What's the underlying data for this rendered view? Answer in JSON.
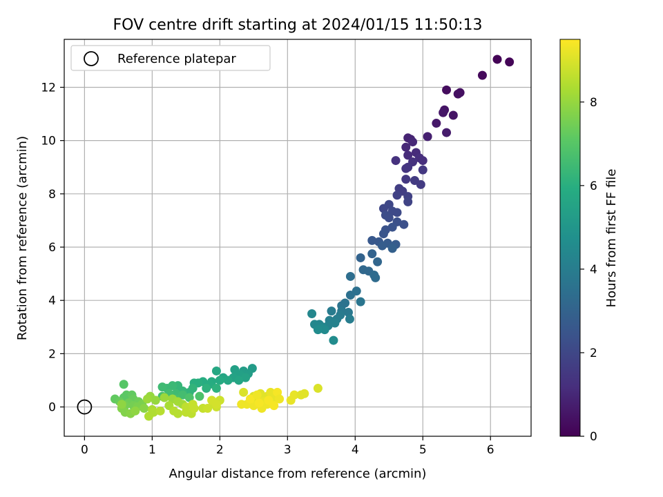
{
  "chart_data": {
    "type": "scatter",
    "title": "FOV centre drift starting at 2024/01/15 11:50:13",
    "xlabel": "Angular distance from reference (arcmin)",
    "ylabel": "Rotation from reference (arcmin)",
    "xlim": [
      -0.3,
      6.6
    ],
    "ylim": [
      -1.1,
      13.8
    ],
    "xticks": [
      "0",
      "1",
      "2",
      "3",
      "4",
      "5",
      "6"
    ],
    "yticks": [
      "0",
      "2",
      "4",
      "6",
      "8",
      "10",
      "12"
    ],
    "grid": true,
    "legend": {
      "position": "top-left",
      "label": "Reference platepar"
    },
    "reference_point": {
      "x": 0,
      "y": 0
    },
    "colorbar": {
      "label": "Hours from first FF file",
      "range": [
        0,
        9.5
      ],
      "ticks": [
        "0",
        "2",
        "4",
        "6",
        "8"
      ],
      "colormap": "viridis"
    },
    "points": [
      [
        6.1,
        13.05,
        0.05
      ],
      [
        6.28,
        12.95,
        0.1
      ],
      [
        5.88,
        12.45,
        0.2
      ],
      [
        5.55,
        11.8,
        0.35
      ],
      [
        5.52,
        11.75,
        0.4
      ],
      [
        5.35,
        11.9,
        0.3
      ],
      [
        5.45,
        10.95,
        0.5
      ],
      [
        5.32,
        11.15,
        0.5
      ],
      [
        5.3,
        11.05,
        0.55
      ],
      [
        5.2,
        10.65,
        0.6
      ],
      [
        5.35,
        10.3,
        0.7
      ],
      [
        5.07,
        10.15,
        0.8
      ],
      [
        4.82,
        10.05,
        0.9
      ],
      [
        4.78,
        10.1,
        0.9
      ],
      [
        4.85,
        9.95,
        1.0
      ],
      [
        4.75,
        9.75,
        1.0
      ],
      [
        4.9,
        9.55,
        1.1
      ],
      [
        4.78,
        9.45,
        1.1
      ],
      [
        4.95,
        9.35,
        1.2
      ],
      [
        5.0,
        9.25,
        1.2
      ],
      [
        4.6,
        9.25,
        1.3
      ],
      [
        4.85,
        9.2,
        1.3
      ],
      [
        4.78,
        9.0,
        1.4
      ],
      [
        4.75,
        8.95,
        1.4
      ],
      [
        5.0,
        8.9,
        1.5
      ],
      [
        4.75,
        8.55,
        1.5
      ],
      [
        4.88,
        8.5,
        1.6
      ],
      [
        4.97,
        8.35,
        1.6
      ],
      [
        4.65,
        8.2,
        1.7
      ],
      [
        4.7,
        8.1,
        1.7
      ],
      [
        4.62,
        7.95,
        1.8
      ],
      [
        4.78,
        7.9,
        1.8
      ],
      [
        4.78,
        7.7,
        1.9
      ],
      [
        4.5,
        7.6,
        2.0
      ],
      [
        4.42,
        7.45,
        2.0
      ],
      [
        4.55,
        7.35,
        2.1
      ],
      [
        4.62,
        7.3,
        2.1
      ],
      [
        4.45,
        7.2,
        2.2
      ],
      [
        4.5,
        7.1,
        2.2
      ],
      [
        4.72,
        6.85,
        2.3
      ],
      [
        4.62,
        6.95,
        2.3
      ],
      [
        4.55,
        6.75,
        2.4
      ],
      [
        4.45,
        6.65,
        2.4
      ],
      [
        4.42,
        6.5,
        2.5
      ],
      [
        4.25,
        6.25,
        2.6
      ],
      [
        4.35,
        6.2,
        2.6
      ],
      [
        4.48,
        6.15,
        2.7
      ],
      [
        4.6,
        6.1,
        2.7
      ],
      [
        4.55,
        6.0,
        2.8
      ],
      [
        4.4,
        6.05,
        2.8
      ],
      [
        4.55,
        5.95,
        2.9
      ],
      [
        4.25,
        5.75,
        3.0
      ],
      [
        4.08,
        5.6,
        3.0
      ],
      [
        4.33,
        5.45,
        3.1
      ],
      [
        4.12,
        5.15,
        3.2
      ],
      [
        4.2,
        5.1,
        3.2
      ],
      [
        4.28,
        4.95,
        3.3
      ],
      [
        4.3,
        4.85,
        3.3
      ],
      [
        3.93,
        4.9,
        3.4
      ],
      [
        4.02,
        4.35,
        3.5
      ],
      [
        3.93,
        4.2,
        3.5
      ],
      [
        3.85,
        3.9,
        3.6
      ],
      [
        3.8,
        3.8,
        3.6
      ],
      [
        4.08,
        3.95,
        3.7
      ],
      [
        3.9,
        3.55,
        3.8
      ],
      [
        3.8,
        3.6,
        3.8
      ],
      [
        3.65,
        3.6,
        3.9
      ],
      [
        3.78,
        3.45,
        3.9
      ],
      [
        3.92,
        3.3,
        4.0
      ],
      [
        3.73,
        3.3,
        4.0
      ],
      [
        3.62,
        3.25,
        4.1
      ],
      [
        3.7,
        3.15,
        4.2
      ],
      [
        3.6,
        3.05,
        4.2
      ],
      [
        3.52,
        3.0,
        4.3
      ],
      [
        3.47,
        3.1,
        4.3
      ],
      [
        3.4,
        3.1,
        4.4
      ],
      [
        3.36,
        3.5,
        4.4
      ],
      [
        3.5,
        2.95,
        4.5
      ],
      [
        3.55,
        2.9,
        4.5
      ],
      [
        3.45,
        2.9,
        4.6
      ],
      [
        3.68,
        2.5,
        4.6
      ],
      [
        2.48,
        1.45,
        5.2
      ],
      [
        2.35,
        1.35,
        5.3
      ],
      [
        2.42,
        1.25,
        5.3
      ],
      [
        2.22,
        1.4,
        5.4
      ],
      [
        2.3,
        1.2,
        5.4
      ],
      [
        2.38,
        1.1,
        5.5
      ],
      [
        2.2,
        1.1,
        5.5
      ],
      [
        2.28,
        1.0,
        5.6
      ],
      [
        2.05,
        1.1,
        5.6
      ],
      [
        1.95,
        1.35,
        5.7
      ],
      [
        2.12,
        1.0,
        5.7
      ],
      [
        2.0,
        1.0,
        5.8
      ],
      [
        1.88,
        0.95,
        5.8
      ],
      [
        1.75,
        0.95,
        5.9
      ],
      [
        1.85,
        0.85,
        5.9
      ],
      [
        1.68,
        0.9,
        6.0
      ],
      [
        1.62,
        0.9,
        6.0
      ],
      [
        1.95,
        0.7,
        6.1
      ],
      [
        1.8,
        0.7,
        6.1
      ],
      [
        1.6,
        0.7,
        6.2
      ],
      [
        1.55,
        0.55,
        6.2
      ],
      [
        1.45,
        0.6,
        6.3
      ],
      [
        1.38,
        0.8,
        6.3
      ],
      [
        1.3,
        0.8,
        6.4
      ],
      [
        1.22,
        0.7,
        6.4
      ],
      [
        1.15,
        0.75,
        6.5
      ],
      [
        1.35,
        0.5,
        6.5
      ],
      [
        1.45,
        0.45,
        6.6
      ],
      [
        1.25,
        0.5,
        6.6
      ],
      [
        1.15,
        0.4,
        6.7
      ],
      [
        1.35,
        0.3,
        6.7
      ],
      [
        1.55,
        0.35,
        6.8
      ],
      [
        1.7,
        0.4,
        6.8
      ],
      [
        0.58,
        0.85,
        7.0
      ],
      [
        0.62,
        0.45,
        7.1
      ],
      [
        0.58,
        0.35,
        7.1
      ],
      [
        0.45,
        0.3,
        7.2
      ],
      [
        0.7,
        0.45,
        7.2
      ],
      [
        0.72,
        0.3,
        7.3
      ],
      [
        0.52,
        0.2,
        7.3
      ],
      [
        0.65,
        0.15,
        7.4
      ],
      [
        0.8,
        0.2,
        7.4
      ],
      [
        0.6,
        0.05,
        7.5
      ],
      [
        0.72,
        0.05,
        7.5
      ],
      [
        0.85,
        0.1,
        7.6
      ],
      [
        0.78,
        0.0,
        7.6
      ],
      [
        0.55,
        -0.05,
        7.7
      ],
      [
        0.6,
        -0.2,
        7.7
      ],
      [
        0.68,
        -0.25,
        7.8
      ],
      [
        0.88,
        -0.05,
        7.8
      ],
      [
        0.75,
        -0.15,
        7.9
      ],
      [
        0.55,
        0.1,
        7.9
      ],
      [
        0.97,
        0.4,
        8.0
      ],
      [
        1.05,
        0.25,
        8.0
      ],
      [
        0.93,
        0.3,
        8.1
      ],
      [
        1.18,
        0.35,
        8.1
      ],
      [
        1.3,
        0.3,
        8.1
      ],
      [
        1.38,
        0.2,
        8.2
      ],
      [
        1.45,
        0.1,
        8.2
      ],
      [
        1.25,
        0.05,
        8.3
      ],
      [
        1.0,
        -0.1,
        8.3
      ],
      [
        0.95,
        -0.35,
        8.4
      ],
      [
        1.02,
        -0.2,
        8.4
      ],
      [
        1.12,
        -0.15,
        8.5
      ],
      [
        1.32,
        -0.15,
        8.5
      ],
      [
        1.38,
        -0.25,
        8.5
      ],
      [
        1.5,
        -0.2,
        8.6
      ],
      [
        1.58,
        -0.25,
        8.6
      ],
      [
        1.5,
        0.0,
        8.6
      ],
      [
        1.6,
        0.1,
        8.7
      ],
      [
        1.62,
        -0.05,
        8.7
      ],
      [
        1.75,
        -0.05,
        8.7
      ],
      [
        1.82,
        -0.05,
        8.8
      ],
      [
        1.95,
        0.0,
        8.8
      ],
      [
        1.9,
        0.15,
        8.8
      ],
      [
        2.0,
        0.25,
        8.8
      ],
      [
        1.88,
        0.25,
        8.9
      ],
      [
        1.95,
        0.1,
        8.9
      ],
      [
        2.35,
        0.55,
        9.0
      ],
      [
        2.5,
        0.4,
        9.0
      ],
      [
        2.55,
        0.25,
        9.1
      ],
      [
        2.6,
        0.5,
        9.1
      ],
      [
        2.7,
        0.4,
        9.1
      ],
      [
        2.65,
        0.2,
        9.2
      ],
      [
        2.75,
        0.55,
        9.2
      ],
      [
        2.8,
        0.35,
        9.2
      ],
      [
        2.7,
        0.1,
        9.3
      ],
      [
        2.62,
        -0.05,
        9.3
      ],
      [
        2.5,
        0.05,
        9.3
      ],
      [
        2.4,
        0.1,
        9.3
      ],
      [
        2.32,
        0.1,
        9.3
      ],
      [
        2.45,
        0.3,
        9.4
      ],
      [
        2.58,
        0.15,
        9.4
      ],
      [
        2.72,
        0.25,
        9.4
      ],
      [
        2.8,
        0.05,
        9.4
      ],
      [
        2.85,
        0.55,
        9.4
      ],
      [
        3.05,
        0.25,
        9.2
      ],
      [
        3.1,
        0.45,
        9.2
      ],
      [
        3.25,
        0.5,
        9.1
      ],
      [
        3.2,
        0.45,
        9.1
      ],
      [
        3.45,
        0.7,
        9.0
      ],
      [
        2.88,
        0.3,
        9.3
      ],
      [
        2.55,
        0.45,
        9.3
      ]
    ]
  }
}
